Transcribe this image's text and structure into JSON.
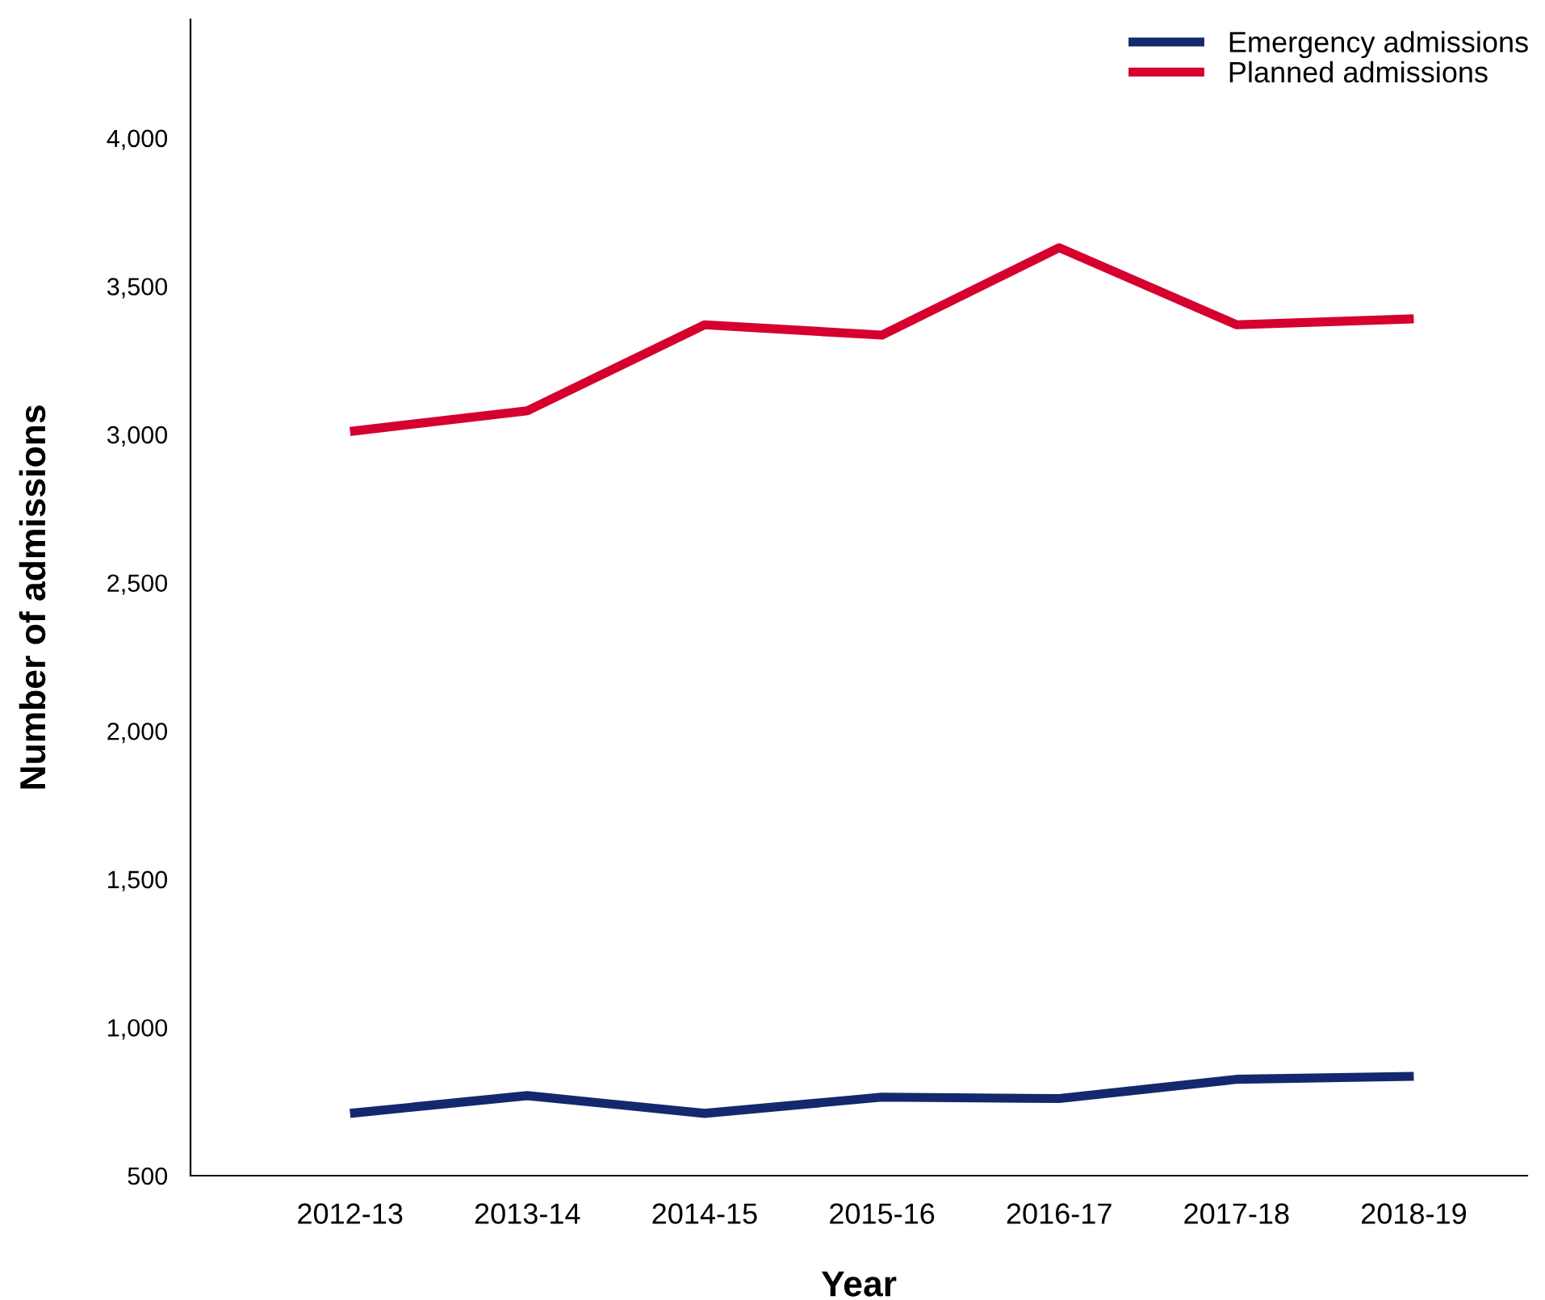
{
  "chart_data": {
    "type": "line",
    "xlabel": "Year",
    "ylabel": "Number of admissions",
    "categories": [
      "2012-13",
      "2013-14",
      "2014-15",
      "2015-16",
      "2016-17",
      "2017-18",
      "2018-19"
    ],
    "series": [
      {
        "name": "Emergency admissions",
        "color": "#14286e",
        "values": [
          710,
          770,
          710,
          765,
          760,
          825,
          835
        ]
      },
      {
        "name": "Planned admissions",
        "color": "#d6002f",
        "values": [
          3010,
          3080,
          3370,
          3335,
          3630,
          3370,
          3390
        ]
      }
    ],
    "ylim": [
      500,
      4400
    ],
    "yticks": [
      {
        "value": 500,
        "label": "500"
      },
      {
        "value": 1000,
        "label": "1,000"
      },
      {
        "value": 1500,
        "label": "1,500"
      },
      {
        "value": 2000,
        "label": "2,000"
      },
      {
        "value": 2500,
        "label": "2,500"
      },
      {
        "value": 3000,
        "label": "3,000"
      },
      {
        "value": 3500,
        "label": "3,500"
      },
      {
        "value": 4000,
        "label": "4,000"
      }
    ],
    "grid": false,
    "legend": "top right",
    "marker": "none",
    "line_style": "solid"
  }
}
